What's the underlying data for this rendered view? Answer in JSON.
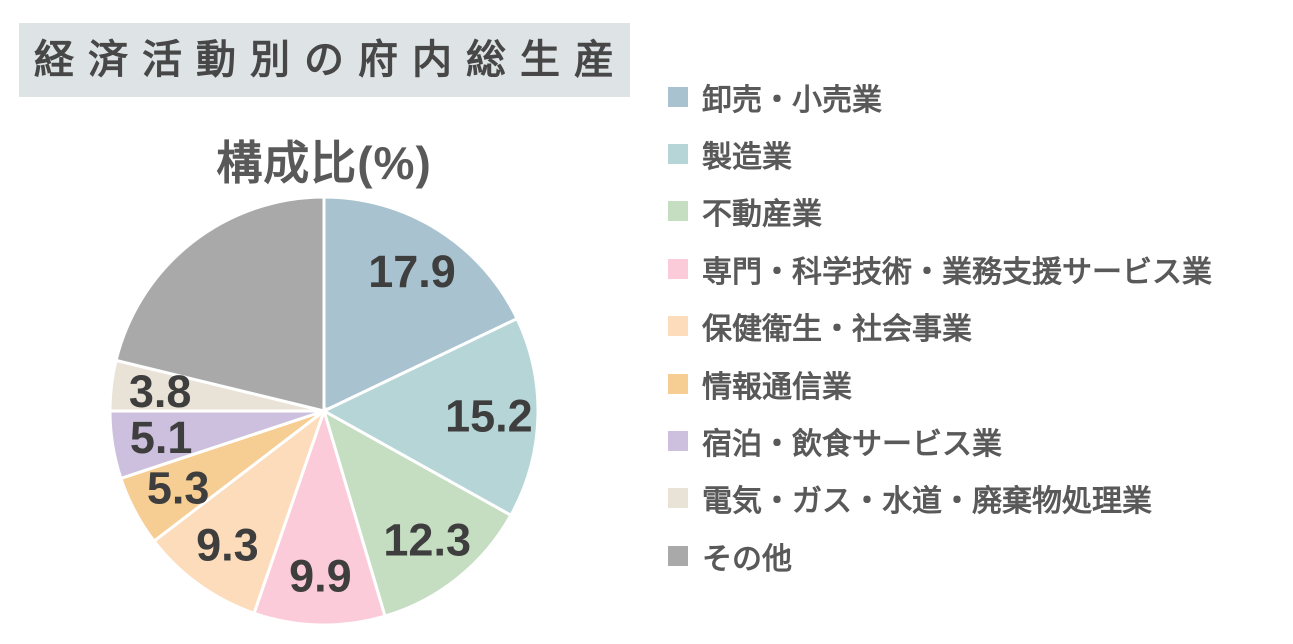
{
  "page": {
    "background": "#ffffff"
  },
  "header": {
    "title": "経済活動別の府内総生産",
    "background": "#dee4e6",
    "text_color": "#474747"
  },
  "chart_data": {
    "type": "pie",
    "title": "構成比(%)",
    "unit": "%",
    "start_angle_deg": 0,
    "direction": "clockwise",
    "legend_position": "right",
    "subtitle_color": "#595959",
    "legend_text_color": "#595959",
    "value_label_color": "#3e3e3e",
    "slice_border_color": "#ffffff",
    "slices": [
      {
        "label": "卸売・小売業",
        "value": 17.9,
        "color": "#a9c2cf",
        "show_value": true
      },
      {
        "label": "製造業",
        "value": 15.2,
        "color": "#b6d5d7",
        "show_value": true
      },
      {
        "label": "不動産業",
        "value": 12.3,
        "color": "#c5dec2",
        "show_value": true
      },
      {
        "label": "専門・科学技術・業務支援サービス業",
        "value": 9.9,
        "color": "#fbcbda",
        "show_value": true
      },
      {
        "label": "保健衛生・社会事業",
        "value": 9.3,
        "color": "#fcdcba",
        "show_value": true
      },
      {
        "label": "情報通信業",
        "value": 5.3,
        "color": "#f6cd92",
        "show_value": true
      },
      {
        "label": "宿泊・飲食サービス業",
        "value": 5.1,
        "color": "#cdc0df",
        "show_value": true
      },
      {
        "label": "電気・ガス・水道・廃棄物処理業",
        "value": 3.8,
        "color": "#e9e2d6",
        "show_value": true
      },
      {
        "label": "その他",
        "value": 21.2,
        "color": "#a9a9a9",
        "show_value": false
      }
    ]
  }
}
